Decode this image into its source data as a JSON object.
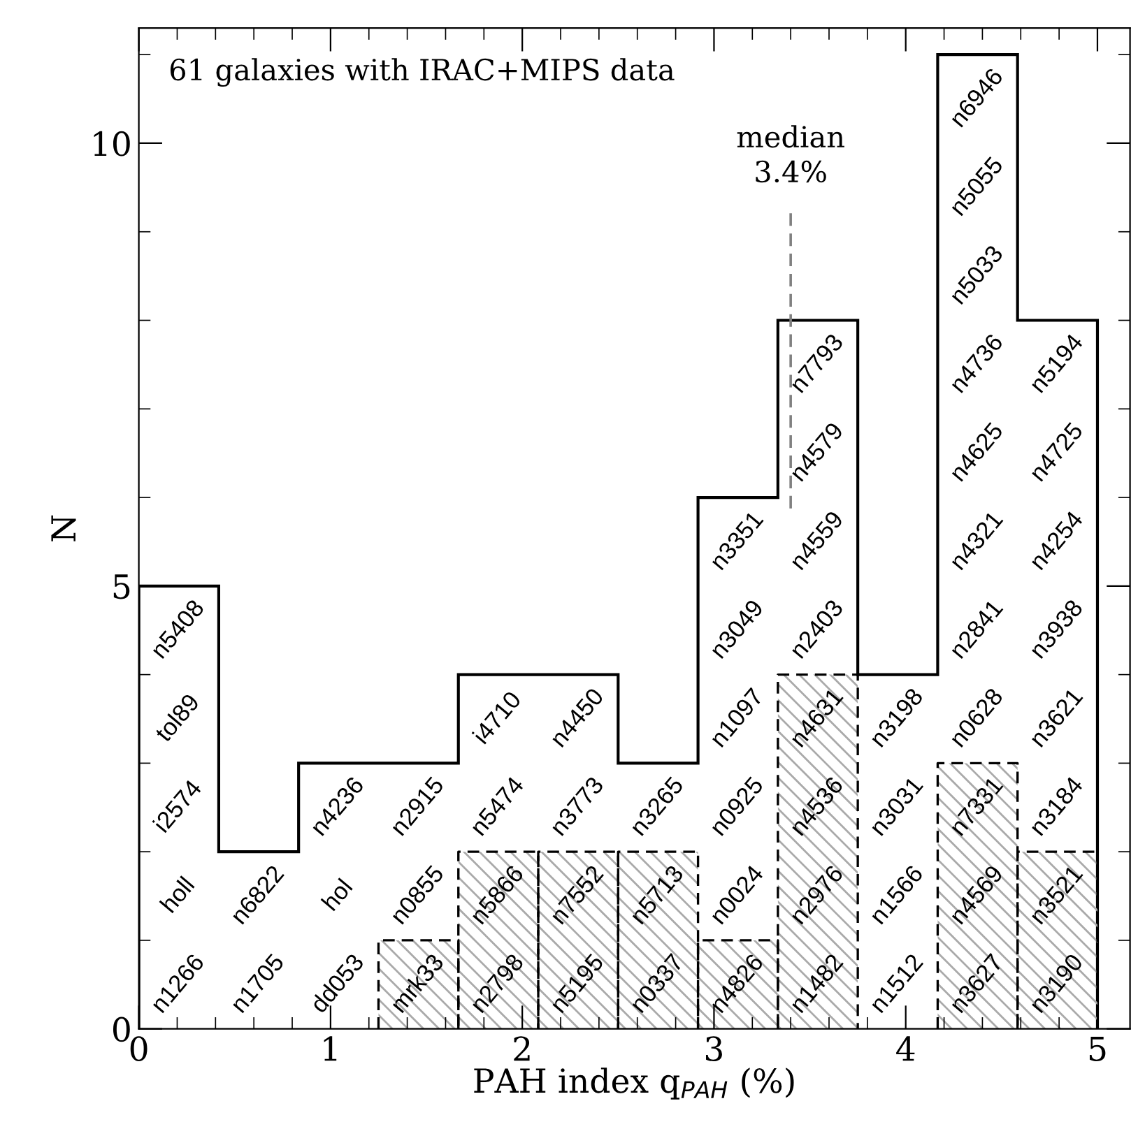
{
  "chart_data": {
    "type": "histogram",
    "xlabel": "PAH index q$_{PAH}$ (%)",
    "ylabel": "N",
    "bins": [
      0,
      0.4167,
      0.8333,
      1.25,
      1.6667,
      2.0833,
      2.5,
      2.9167,
      3.3333,
      3.75,
      4.1667,
      4.5833,
      5.0
    ],
    "series": [
      {
        "color": "#000000",
        "line_style": "solid",
        "values": [
          5,
          2,
          3,
          3,
          4,
          4,
          3,
          6,
          8,
          4,
          11,
          8
        ]
      },
      {
        "color": "#000000",
        "line_style": "dashed",
        "values": [
          0,
          0,
          0,
          1,
          2,
          2,
          2,
          1,
          4,
          0,
          3,
          2
        ]
      }
    ],
    "xlim": [
      0,
      5.17
    ],
    "ylim": [
      0,
      11.3
    ],
    "xticks": [
      0,
      1,
      2,
      3,
      4,
      5
    ],
    "yticks": [
      0,
      5,
      10
    ],
    "ref_lines": [
      {
        "axis": "x",
        "value": 3.4,
        "label": "median\n3.4%",
        "color": "#808080",
        "line_style": "dashed"
      }
    ],
    "grid": false,
    "legend": false,
    "annotations": [
      "61 galaxies with IRAC+MIPS data",
      "n1266",
      "holl",
      "i2574",
      "tol89",
      "n5408",
      "n1705",
      "n6822",
      "dd053",
      "hol",
      "n4236",
      "mrk33",
      "n0855",
      "n2915",
      "n2798",
      "n5866",
      "n5474",
      "i4710",
      "n5195",
      "n7552",
      "n3773",
      "n4450",
      "n0337",
      "n5713",
      "n3265",
      "n4826",
      "n0024",
      "n0925",
      "n1097",
      "n3049",
      "n3351",
      "n1482",
      "n2976",
      "n4536",
      "n4631",
      "n2403",
      "n4559",
      "n4579",
      "n7793",
      "n1512",
      "n1566",
      "n3031",
      "n3198",
      "n3627",
      "n4569",
      "n7331",
      "n0628",
      "n2841",
      "n4321",
      "n4625",
      "n4736",
      "n5033",
      "n5055",
      "n6946",
      "n3190",
      "n3521",
      "n3184",
      "n3621",
      "n3938",
      "n4254",
      "n4725",
      "n5194"
    ]
  }
}
